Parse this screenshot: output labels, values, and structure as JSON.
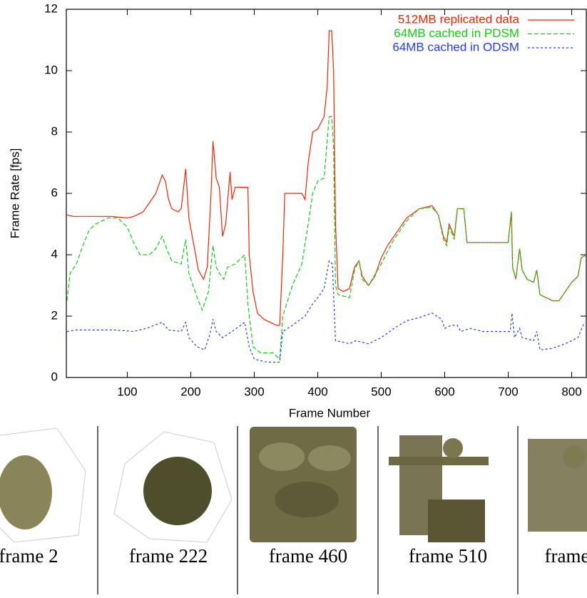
{
  "chart_data": {
    "type": "line",
    "x_label": "Frame Number",
    "y_label": "Frame Rate [fps]",
    "xlim": [
      4,
      823
    ],
    "ylim": [
      0,
      12
    ],
    "xticks": [
      100,
      200,
      300,
      400,
      500,
      600,
      700,
      800
    ],
    "yticks": [
      0,
      2,
      4,
      6,
      8,
      10,
      12
    ],
    "series": [
      {
        "name": "512MB replicated data",
        "color": "#ff2000",
        "dash": "none",
        "x": [
          5,
          15,
          25,
          50,
          75,
          100,
          110,
          125,
          135,
          145,
          155,
          160,
          165,
          170,
          180,
          185,
          192,
          197,
          205,
          212,
          220,
          226,
          232,
          235,
          240,
          245,
          250,
          255,
          262,
          265,
          270,
          290,
          292,
          298,
          305,
          315,
          325,
          335,
          340,
          345,
          348,
          360,
          375,
          380,
          385,
          392,
          400,
          410,
          415,
          418,
          422,
          425,
          428,
          432,
          440,
          450,
          458,
          465,
          470,
          480,
          490,
          500,
          510,
          520,
          540,
          560,
          580,
          590,
          598,
          603,
          607,
          615,
          620,
          630,
          635,
          650,
          670,
          690,
          700,
          705,
          707,
          712,
          718,
          722,
          730,
          740,
          745,
          750,
          760,
          770,
          780,
          790,
          800,
          810,
          815,
          823
        ],
        "values": [
          5.3,
          5.25,
          5.25,
          5.25,
          5.25,
          5.2,
          5.25,
          5.4,
          5.7,
          6.0,
          6.6,
          6.4,
          5.8,
          5.5,
          5.4,
          5.5,
          6.8,
          5.2,
          4.3,
          3.5,
          3.2,
          3.6,
          6.0,
          7.7,
          6.5,
          6.2,
          4.6,
          5.0,
          6.7,
          5.8,
          6.2,
          6.2,
          4.0,
          2.8,
          2.1,
          1.9,
          1.8,
          1.7,
          1.7,
          4.0,
          6.0,
          6.0,
          6.0,
          5.8,
          7.0,
          8.0,
          8.1,
          8.5,
          9.5,
          11.3,
          11.3,
          10.0,
          5.0,
          2.9,
          2.8,
          2.9,
          3.6,
          3.8,
          3.3,
          3.0,
          3.3,
          3.9,
          4.3,
          4.6,
          5.2,
          5.5,
          5.6,
          5.3,
          4.6,
          4.4,
          5.0,
          4.6,
          5.5,
          5.5,
          4.4,
          4.4,
          4.4,
          4.4,
          4.4,
          5.4,
          3.6,
          3.2,
          4.2,
          3.5,
          3.2,
          3.1,
          3.5,
          2.7,
          2.6,
          2.5,
          2.5,
          2.8,
          3.1,
          3.3,
          3.9,
          4.0
        ]
      },
      {
        "name": "64MB cached in PDSM",
        "color": "#10d010",
        "dash": "6 3",
        "x": [
          5,
          10,
          20,
          30,
          40,
          50,
          70,
          85,
          100,
          110,
          120,
          135,
          145,
          155,
          162,
          170,
          185,
          192,
          197,
          210,
          218,
          228,
          235,
          240,
          245,
          252,
          258,
          270,
          285,
          290,
          298,
          310,
          330,
          340,
          345,
          360,
          375,
          385,
          392,
          400,
          410,
          418,
          422,
          425,
          428,
          432,
          450,
          458,
          465,
          470,
          480,
          500,
          520,
          540,
          560,
          580,
          590,
          598,
          603,
          607,
          615,
          620,
          630,
          635,
          650,
          670,
          690,
          700,
          705,
          707,
          712,
          718,
          722,
          730,
          740,
          745,
          750,
          760,
          770,
          780,
          790,
          800,
          810,
          815,
          823
        ],
        "values": [
          2.5,
          3.4,
          3.7,
          4.3,
          4.8,
          5.0,
          5.2,
          5.2,
          4.9,
          4.4,
          4.0,
          4.0,
          4.2,
          4.6,
          4.2,
          3.8,
          3.7,
          4.5,
          3.4,
          2.6,
          2.2,
          2.8,
          4.3,
          3.6,
          3.4,
          3.2,
          3.6,
          3.7,
          4.0,
          2.4,
          1.0,
          0.8,
          0.8,
          0.6,
          2.0,
          3.0,
          3.7,
          5.0,
          6.0,
          6.4,
          6.5,
          8.5,
          8.5,
          7.5,
          3.0,
          2.7,
          2.6,
          3.5,
          3.8,
          3.2,
          3.0,
          3.7,
          4.5,
          5.1,
          5.5,
          5.55,
          5.3,
          4.5,
          4.3,
          4.9,
          4.5,
          5.5,
          5.5,
          4.4,
          4.4,
          4.4,
          4.4,
          4.4,
          5.4,
          3.6,
          3.2,
          4.2,
          3.5,
          3.2,
          3.1,
          3.5,
          2.7,
          2.6,
          2.5,
          2.5,
          2.8,
          3.1,
          3.3,
          3.9,
          4.0
        ]
      },
      {
        "name": "64MB cached in ODSM",
        "color": "#2040f0",
        "dash": "3 3",
        "x": [
          5,
          20,
          50,
          80,
          110,
          130,
          155,
          165,
          185,
          192,
          197,
          210,
          222,
          230,
          235,
          240,
          250,
          265,
          285,
          292,
          300,
          320,
          340,
          345,
          360,
          380,
          392,
          400,
          410,
          418,
          423,
          428,
          440,
          450,
          460,
          480,
          500,
          520,
          540,
          560,
          580,
          595,
          600,
          610,
          620,
          625,
          640,
          660,
          690,
          703,
          706,
          710,
          718,
          722,
          740,
          745,
          750,
          770,
          790,
          810,
          820
        ],
        "values": [
          1.5,
          1.55,
          1.55,
          1.55,
          1.5,
          1.6,
          1.8,
          1.55,
          1.5,
          1.8,
          1.3,
          1.0,
          0.9,
          1.4,
          1.9,
          1.5,
          1.3,
          1.5,
          1.8,
          1.0,
          0.6,
          0.5,
          0.5,
          1.5,
          1.7,
          2.0,
          2.4,
          2.6,
          2.9,
          3.8,
          3.7,
          1.2,
          1.15,
          1.1,
          1.2,
          1.1,
          1.3,
          1.6,
          1.85,
          1.95,
          2.1,
          1.9,
          1.6,
          1.7,
          1.7,
          1.5,
          1.6,
          1.5,
          1.5,
          1.5,
          2.1,
          1.3,
          1.6,
          1.3,
          1.2,
          1.5,
          0.9,
          0.95,
          1.1,
          1.3,
          1.8
        ]
      }
    ]
  },
  "panels": [
    "frame 2",
    "frame 222",
    "frame 460",
    "frame 510",
    "frame"
  ]
}
